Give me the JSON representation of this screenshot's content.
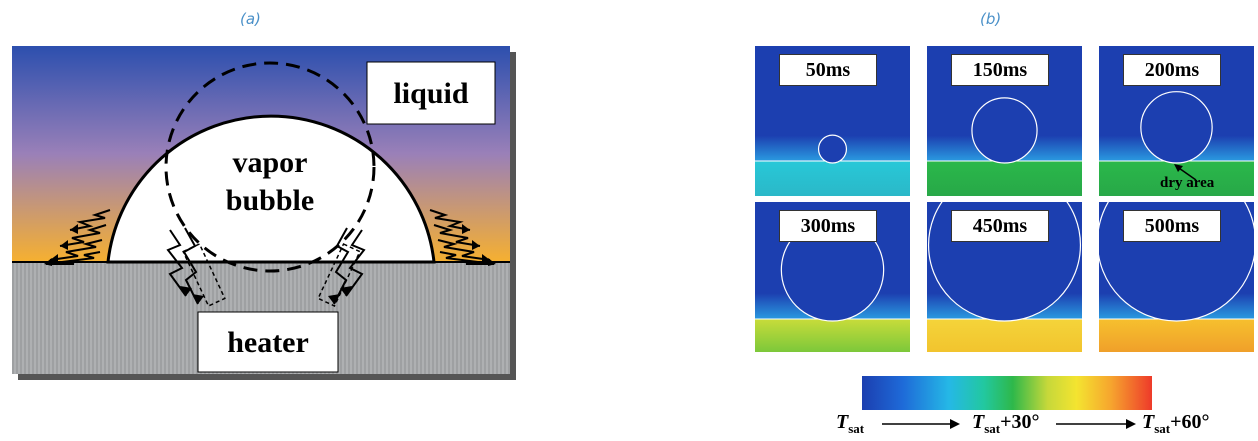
{
  "panel_a": {
    "label": "(a)",
    "liquid_label": "liquid",
    "vapor_line1": "vapor",
    "vapor_line2": "bubble",
    "heater_label": "heater"
  },
  "panel_b": {
    "label": "(b)",
    "frames": [
      {
        "time": "50ms",
        "bubble_radius_rel": 0.045,
        "heated": "cyan"
      },
      {
        "time": "150ms",
        "bubble_radius_rel": 0.105,
        "heated": "green"
      },
      {
        "time": "200ms",
        "bubble_radius_rel": 0.115,
        "heated": "green"
      },
      {
        "time": "300ms",
        "bubble_radius_rel": 0.165,
        "heated": "yellow-green"
      },
      {
        "time": "450ms",
        "bubble_radius_rel": 0.245,
        "heated": "yellow"
      },
      {
        "time": "500ms",
        "bubble_radius_rel": 0.255,
        "heated": "yellow-orange"
      }
    ],
    "dry_area_label": "dry area",
    "colorbar": {
      "left_T": "T",
      "left_sub": "sat",
      "mid_T": "T",
      "mid_sub": "sat",
      "mid_suffix": "+30°",
      "right_T": "T",
      "right_sub": "sat",
      "right_suffix": "+60°"
    }
  },
  "colors": {
    "liquid_top": "#2c4fae",
    "liquid_mid": "#9a80b8",
    "liquid_bottom": "#f6b030",
    "heater": "#a9abad",
    "accent_label": "#4a90c8"
  }
}
